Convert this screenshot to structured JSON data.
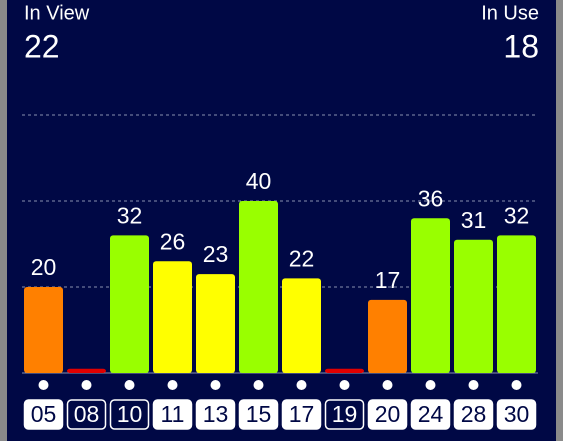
{
  "chart_data": {
    "type": "bar",
    "in_view_label": "In View",
    "in_view": 22,
    "in_use_label": "In Use",
    "in_use": 18,
    "categories": [
      "05",
      "08",
      "10",
      "11",
      "13",
      "15",
      "17",
      "19",
      "20",
      "24",
      "28",
      "30"
    ],
    "values": [
      20,
      1,
      32,
      26,
      23,
      40,
      22,
      1,
      17,
      36,
      31,
      32
    ],
    "value_labels": [
      "20",
      null,
      "32",
      "26",
      "23",
      "40",
      "22",
      null,
      "17",
      "36",
      "31",
      "32"
    ],
    "colors": [
      "#ff8000",
      "#e00000",
      "#99ff00",
      "#ffff00",
      "#ffff00",
      "#99ff00",
      "#ffff00",
      "#e00000",
      "#ff8000",
      "#99ff00",
      "#99ff00",
      "#99ff00"
    ],
    "used": [
      true,
      false,
      false,
      true,
      true,
      true,
      true,
      false,
      true,
      true,
      true,
      true
    ],
    "ylim": [
      0,
      60
    ],
    "yticks": [
      20,
      40,
      60
    ],
    "grid": true
  }
}
